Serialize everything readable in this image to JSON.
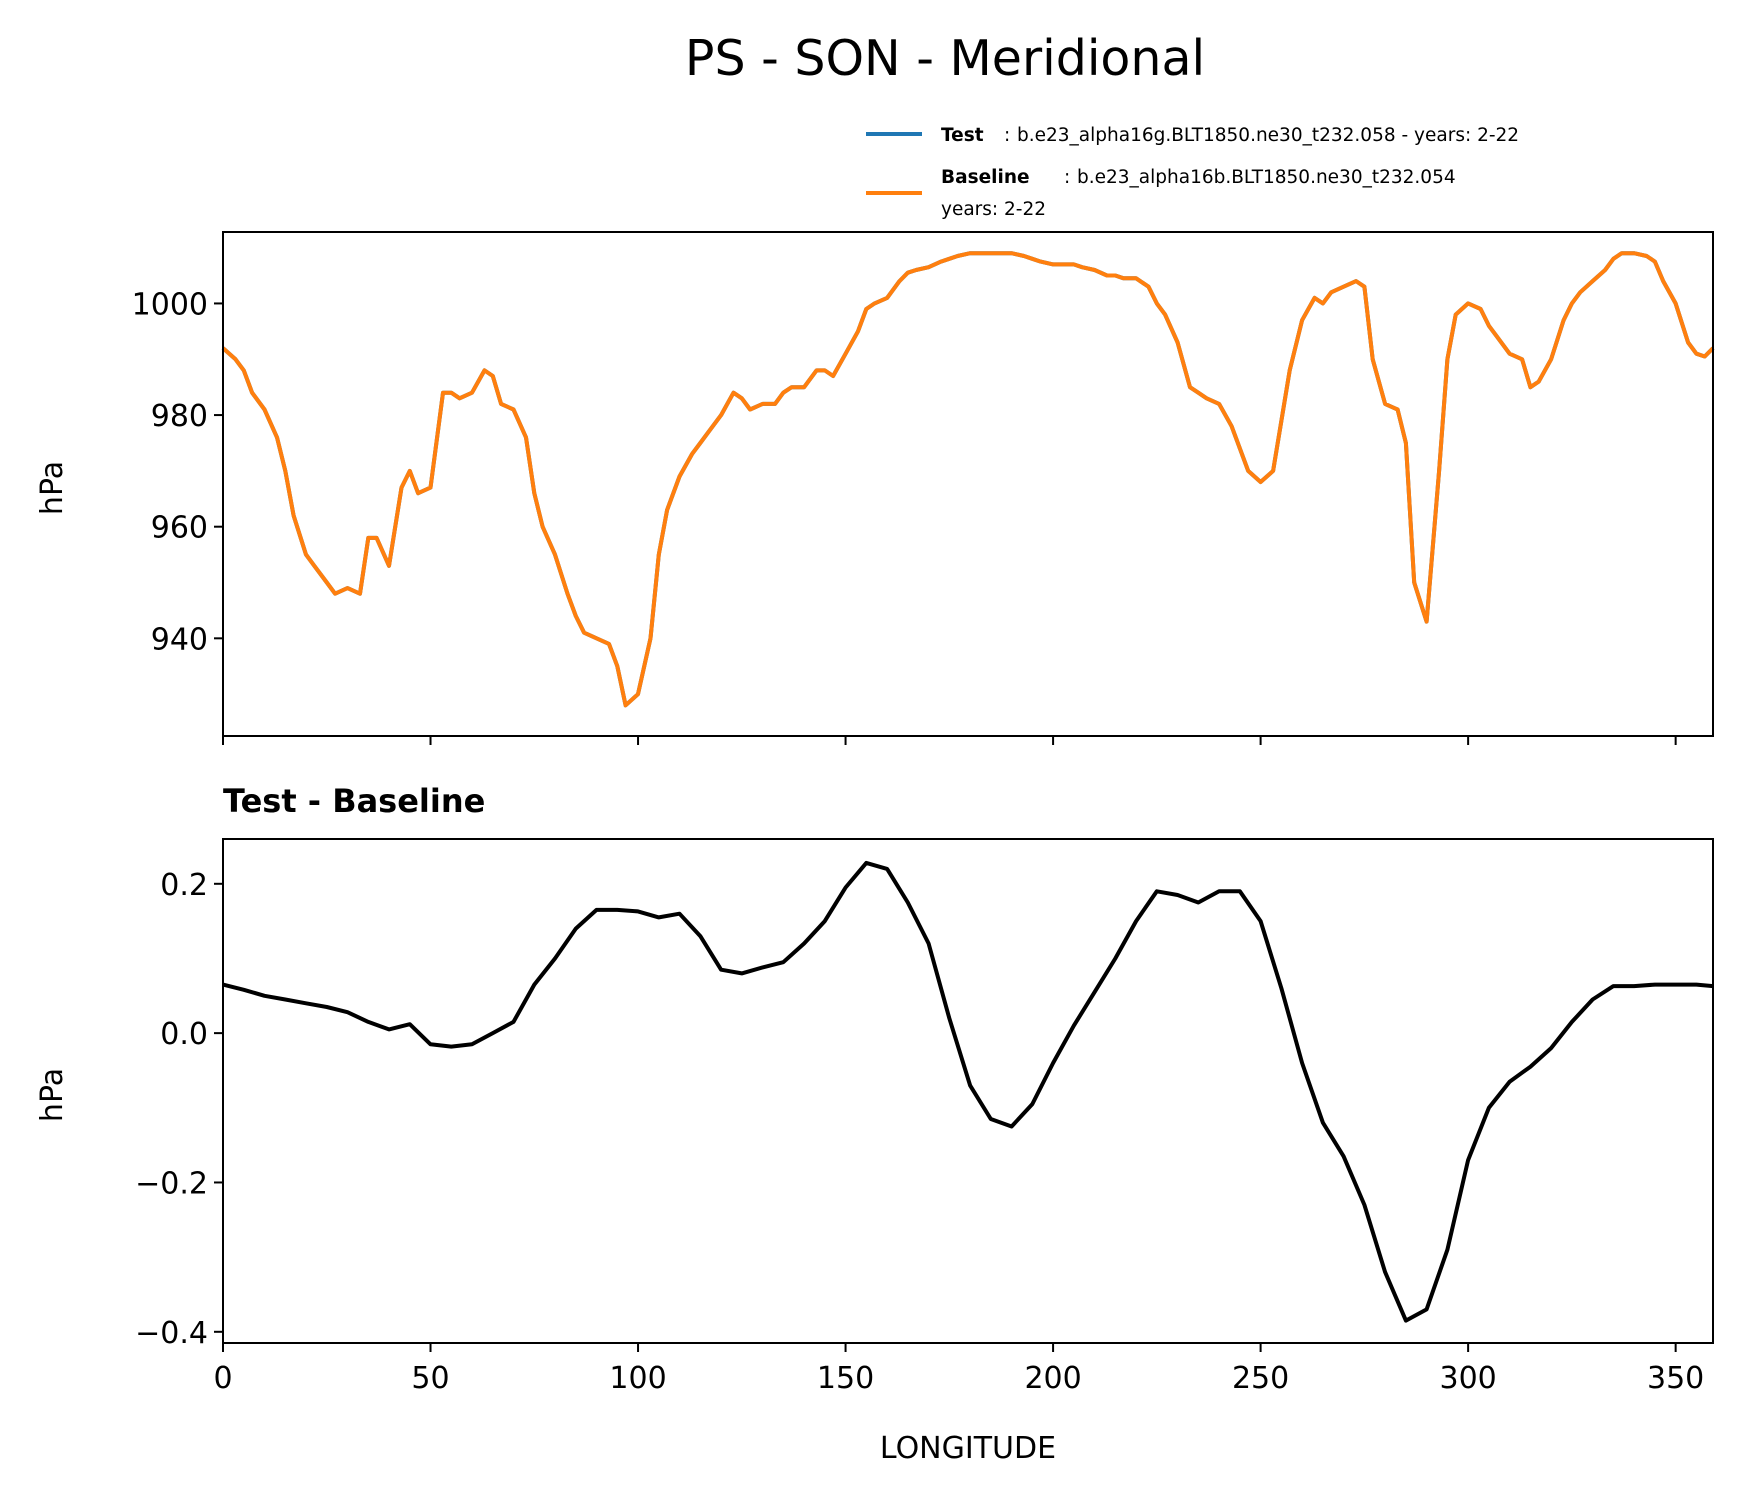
{
  "title": "PS - SON - Meridional",
  "legend": {
    "test": {
      "name": "Test",
      "sep": ":",
      "text": "b.e23_alpha16g.BLT1850.ne30_t232.058 - years: 2-22"
    },
    "baseline": {
      "name": "Baseline",
      "sep": ":",
      "text": "b.e23_alpha16b.BLT1850.ne30_t232.054",
      "text2": "years: 2-22"
    }
  },
  "colors": {
    "test": "#1f77b4",
    "baseline": "#ff7f0e",
    "diff": "#000000"
  },
  "chart_data": [
    {
      "type": "line",
      "title": "",
      "xlabel": "",
      "ylabel": "hPa",
      "xlim": [
        0,
        359
      ],
      "ylim": [
        922.5,
        1012.8
      ],
      "yticks": [
        940,
        960,
        980,
        1000
      ],
      "ytick_labels": [
        "940",
        "960",
        "980",
        "1000"
      ],
      "xticks": [
        0,
        50,
        100,
        150,
        200,
        250,
        300,
        350
      ],
      "legend_position": "top-right, above axes",
      "grid": false,
      "x": [
        0,
        3,
        5,
        7,
        10,
        13,
        15,
        17,
        20,
        22,
        25,
        27,
        30,
        33,
        35,
        37,
        40,
        43,
        45,
        47,
        50,
        53,
        55,
        57,
        60,
        63,
        65,
        67,
        70,
        73,
        75,
        77,
        80,
        83,
        85,
        87,
        90,
        93,
        95,
        97,
        100,
        103,
        105,
        107,
        110,
        113,
        115,
        117,
        120,
        123,
        125,
        127,
        130,
        133,
        135,
        137,
        140,
        143,
        145,
        147,
        150,
        153,
        155,
        157,
        160,
        163,
        165,
        167,
        170,
        173,
        175,
        177,
        180,
        183,
        185,
        187,
        190,
        193,
        195,
        197,
        200,
        203,
        205,
        207,
        210,
        213,
        215,
        217,
        220,
        223,
        225,
        227,
        230,
        233,
        235,
        237,
        240,
        243,
        245,
        247,
        250,
        253,
        255,
        257,
        260,
        263,
        265,
        267,
        270,
        273,
        275,
        277,
        280,
        283,
        285,
        287,
        290,
        293,
        295,
        297,
        300,
        303,
        305,
        307,
        310,
        313,
        315,
        317,
        320,
        323,
        325,
        327,
        330,
        333,
        335,
        337,
        340,
        343,
        345,
        347,
        350,
        353,
        355,
        357,
        359
      ],
      "series": [
        {
          "name": "Test",
          "values": [
            992,
            990,
            988,
            984,
            981,
            976,
            970,
            962,
            955,
            953,
            950,
            948,
            949,
            948,
            958,
            958,
            953,
            967,
            970,
            966,
            967,
            984,
            984,
            983,
            984,
            988,
            987,
            982,
            981,
            976,
            966,
            960,
            955,
            948,
            944,
            941,
            940,
            939,
            935,
            928,
            930,
            940,
            955,
            963,
            969,
            973,
            975,
            977,
            980,
            984,
            983,
            981,
            982,
            982,
            984,
            985,
            985,
            988,
            988,
            987,
            991,
            995,
            999,
            1000,
            1001,
            1004,
            1005.5,
            1006,
            1006.5,
            1007.5,
            1008,
            1008.5,
            1009,
            1009,
            1009,
            1009,
            1009,
            1008.5,
            1008,
            1007.5,
            1007,
            1007,
            1007,
            1006.5,
            1006,
            1005,
            1005,
            1004.5,
            1004.5,
            1003,
            1000,
            998,
            993,
            985,
            984,
            983,
            982,
            978,
            974,
            970,
            968,
            970,
            979,
            988,
            997,
            1001,
            1000,
            1002,
            1003,
            1004,
            1003,
            990,
            982,
            981,
            975,
            950,
            943,
            970,
            990,
            998,
            1000,
            999,
            996,
            994,
            991,
            990,
            985,
            986,
            990,
            997,
            1000,
            1002,
            1004,
            1006,
            1008,
            1009,
            1009,
            1008.5,
            1007.5,
            1004,
            1000,
            993,
            991,
            990.5,
            992
          ]
        },
        {
          "name": "Baseline",
          "values": [
            992,
            990,
            988,
            984,
            981,
            976,
            970,
            962,
            955,
            953,
            950,
            948,
            949,
            948,
            958,
            958,
            953,
            967,
            970,
            966,
            967,
            984,
            984,
            983,
            984,
            988,
            987,
            982,
            981,
            976,
            966,
            960,
            955,
            948,
            944,
            941,
            940,
            939,
            935,
            928,
            930,
            940,
            955,
            963,
            969,
            973,
            975,
            977,
            980,
            984,
            983,
            981,
            982,
            982,
            984,
            985,
            985,
            988,
            988,
            987,
            991,
            995,
            999,
            1000,
            1001,
            1004,
            1005.5,
            1006,
            1006.5,
            1007.5,
            1008,
            1008.5,
            1009,
            1009,
            1009,
            1009,
            1009,
            1008.5,
            1008,
            1007.5,
            1007,
            1007,
            1007,
            1006.5,
            1006,
            1005,
            1005,
            1004.5,
            1004.5,
            1003,
            1000,
            998,
            993,
            985,
            984,
            983,
            982,
            978,
            974,
            970,
            968,
            970,
            979,
            988,
            997,
            1001,
            1000,
            1002,
            1003,
            1004,
            1003,
            990,
            982,
            981,
            975,
            950,
            943,
            970,
            990,
            998,
            1000,
            999,
            996,
            994,
            991,
            990,
            985,
            986,
            990,
            997,
            1000,
            1002,
            1004,
            1006,
            1008,
            1009,
            1009,
            1008.5,
            1007.5,
            1004,
            1000,
            993,
            991,
            990.5,
            992
          ]
        }
      ]
    },
    {
      "type": "line",
      "title": "Test - Baseline",
      "xlabel": "LONGITUDE",
      "ylabel": "hPa",
      "xlim": [
        0,
        359
      ],
      "ylim": [
        -0.415,
        0.26
      ],
      "yticks": [
        -0.4,
        -0.2,
        0.0,
        0.2
      ],
      "ytick_labels": [
        "−0.4",
        "−0.2",
        "0.0",
        "0.2"
      ],
      "xticks": [
        0,
        50,
        100,
        150,
        200,
        250,
        300,
        350
      ],
      "xtick_labels": [
        "0",
        "50",
        "100",
        "150",
        "200",
        "250",
        "300",
        "350"
      ],
      "grid": false,
      "x": [
        0,
        5,
        10,
        15,
        20,
        25,
        30,
        35,
        40,
        45,
        50,
        55,
        60,
        65,
        70,
        75,
        80,
        85,
        90,
        95,
        100,
        105,
        110,
        115,
        120,
        125,
        130,
        135,
        140,
        145,
        150,
        155,
        160,
        165,
        170,
        175,
        180,
        185,
        190,
        195,
        200,
        205,
        210,
        215,
        220,
        225,
        230,
        235,
        240,
        245,
        250,
        255,
        260,
        265,
        270,
        275,
        280,
        285,
        290,
        295,
        300,
        305,
        310,
        315,
        320,
        325,
        330,
        335,
        340,
        345,
        350,
        355,
        359
      ],
      "series": [
        {
          "name": "Test − Baseline",
          "values": [
            0.065,
            0.058,
            0.05,
            0.045,
            0.04,
            0.035,
            0.028,
            0.015,
            0.005,
            0.012,
            -0.015,
            -0.018,
            -0.015,
            0.0,
            0.015,
            0.065,
            0.1,
            0.14,
            0.165,
            0.165,
            0.163,
            0.155,
            0.16,
            0.13,
            0.085,
            0.08,
            0.088,
            0.095,
            0.12,
            0.15,
            0.195,
            0.228,
            0.22,
            0.175,
            0.12,
            0.02,
            -0.07,
            -0.115,
            -0.125,
            -0.095,
            -0.04,
            0.01,
            0.055,
            0.1,
            0.15,
            0.19,
            0.185,
            0.175,
            0.19,
            0.19,
            0.15,
            0.06,
            -0.04,
            -0.12,
            -0.165,
            -0.23,
            -0.32,
            -0.385,
            -0.37,
            -0.29,
            -0.17,
            -0.1,
            -0.065,
            -0.045,
            -0.02,
            0.015,
            0.045,
            0.063,
            0.063,
            0.065,
            0.065,
            0.065,
            0.063
          ]
        }
      ]
    }
  ]
}
